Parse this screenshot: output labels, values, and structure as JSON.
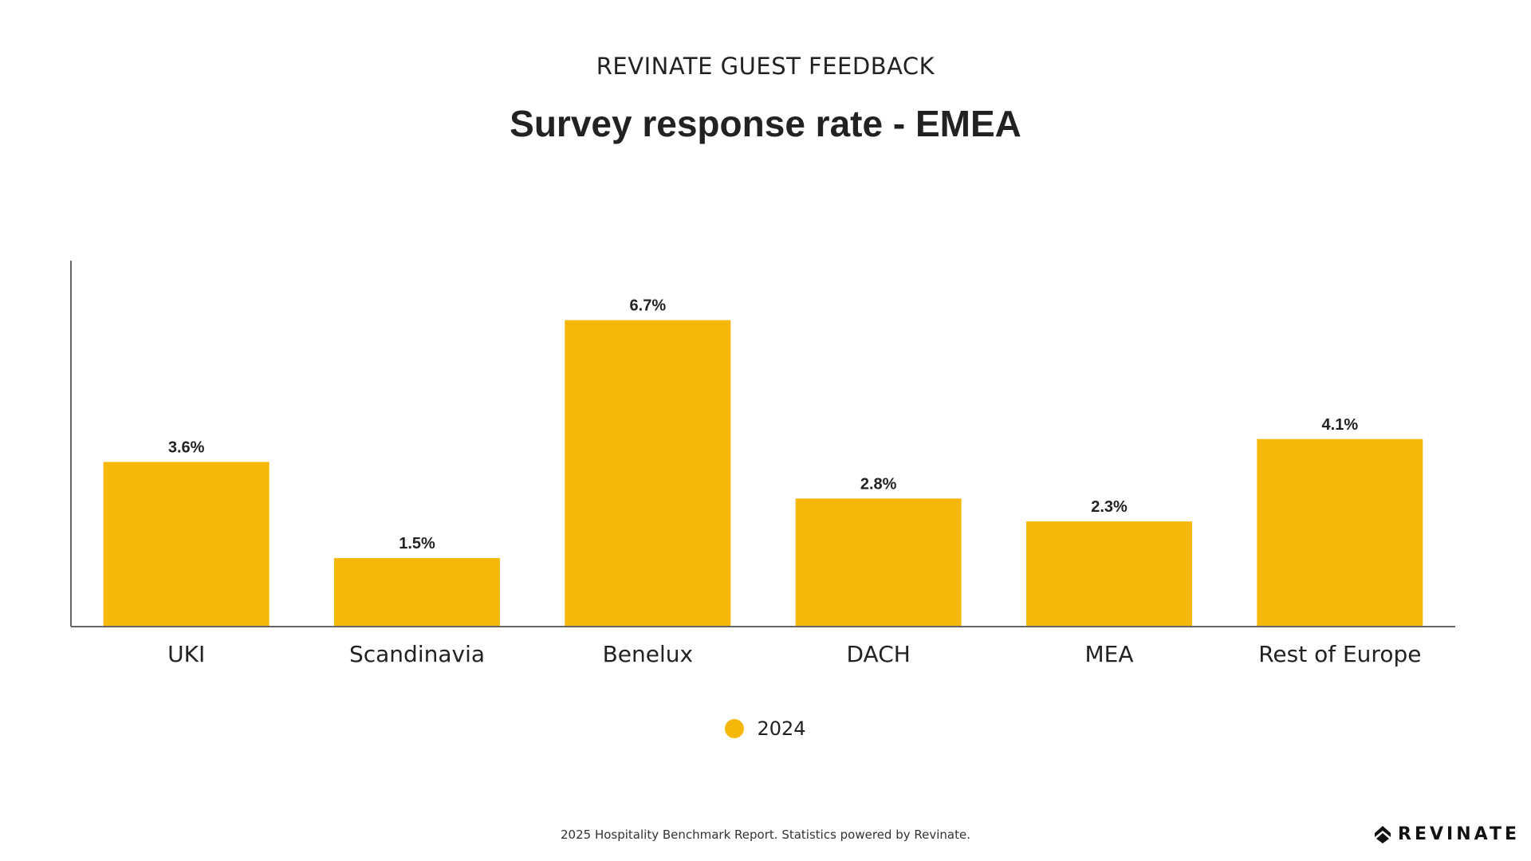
{
  "header": {
    "supertitle": "REVINATE GUEST FEEDBACK",
    "title": "Survey response rate - EMEA"
  },
  "chart_data": {
    "type": "bar",
    "title": "Survey response rate - EMEA",
    "categories": [
      "UKI",
      "Scandinavia",
      "Benelux",
      "DACH",
      "MEA",
      "Rest of Europe"
    ],
    "series": [
      {
        "name": "2024",
        "values": [
          3.6,
          1.5,
          6.7,
          2.8,
          2.3,
          4.1
        ],
        "labels": [
          "3.6%",
          "1.5%",
          "6.7%",
          "2.8%",
          "2.3%",
          "4.1%"
        ],
        "color": "#F6B70B"
      }
    ],
    "xlabel": "",
    "ylabel": "",
    "ylim": [
      0,
      8
    ],
    "grid": false,
    "legend": "bottom-center"
  },
  "legend": {
    "label": "2024",
    "color": "#F6B70B"
  },
  "footer": {
    "text": "2025 Hospitality Benchmark Report. Statistics powered by Revinate."
  },
  "brand": {
    "name": "REVINATE",
    "icon": "revinate-logo-icon"
  }
}
